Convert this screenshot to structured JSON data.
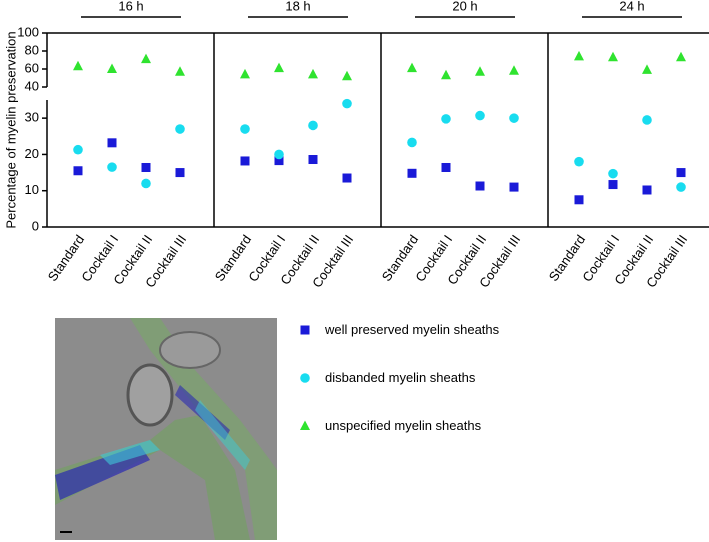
{
  "chart_data": {
    "type": "dot",
    "ylabel": "Percentage of myelin preservation",
    "panels": [
      "16 h",
      "18 h",
      "20 h",
      "24 h"
    ],
    "categories": [
      "Standard",
      "Cocktail I",
      "Cocktail II",
      "Cocktail III",
      "Standard",
      "Cocktail I",
      "Cocktail II",
      "Cocktail III",
      "Standard",
      "Cocktail I",
      "Cocktail II",
      "Cocktail III",
      "Standard",
      "Cocktail I",
      "Cocktail II",
      "Cocktail III"
    ],
    "ylim": [
      0,
      35
    ],
    "yticks": [
      0,
      10,
      20,
      30
    ],
    "ylim_break": [
      40,
      100
    ],
    "yticks_break": [
      40,
      60,
      80,
      100
    ],
    "series": [
      {
        "name": "well preserved myelin sheaths",
        "color": "#1a1ad8",
        "marker": "square",
        "values": [
          15.5,
          23.2,
          16.4,
          15,
          18.2,
          18.3,
          18.6,
          13.5,
          14.8,
          16.4,
          11.3,
          11,
          7.5,
          11.7,
          10.2,
          15
        ]
      },
      {
        "name": "disbanded myelin sheaths",
        "color": "#18dcef",
        "marker": "circle",
        "values": [
          21.3,
          16.5,
          12,
          27,
          27,
          20,
          28,
          34,
          23.3,
          29.8,
          30.7,
          30,
          18,
          14.7,
          29.5,
          11
        ]
      },
      {
        "name": "unspecified myelin sheaths",
        "color": "#2fe32f",
        "marker": "triangle",
        "values": [
          63,
          60,
          71,
          57,
          54,
          61,
          54,
          52,
          61,
          53,
          57,
          58,
          74,
          73,
          59,
          73
        ]
      }
    ]
  }
}
